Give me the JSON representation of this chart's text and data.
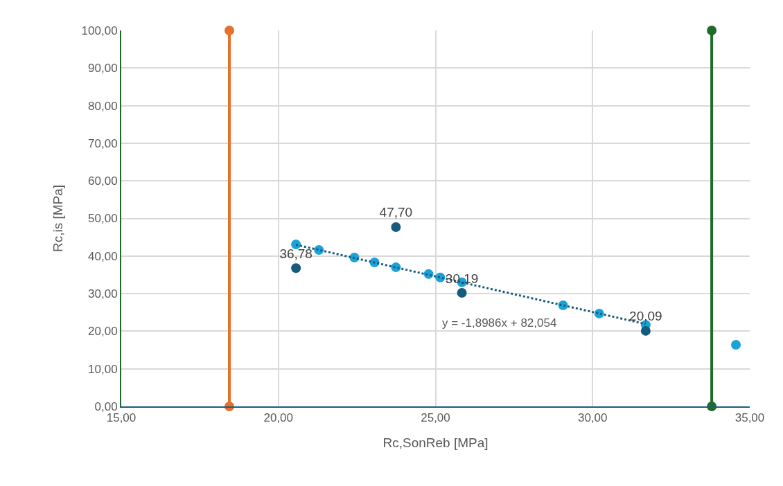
{
  "chart_data": {
    "type": "scatter",
    "xlabel": "Rc,SonReb [MPa]",
    "ylabel": "Rc,is [MPa]",
    "xlim": [
      15,
      35
    ],
    "ylim": [
      0,
      100
    ],
    "xticks": [
      {
        "value": 15,
        "label": "15,00"
      },
      {
        "value": 20,
        "label": "20,00"
      },
      {
        "value": 25,
        "label": "25,00"
      },
      {
        "value": 30,
        "label": "30,00"
      },
      {
        "value": 35,
        "label": "35,00"
      }
    ],
    "yticks": [
      {
        "value": 0,
        "label": "0,00"
      },
      {
        "value": 10,
        "label": "10,00"
      },
      {
        "value": 20,
        "label": "20,00"
      },
      {
        "value": 30,
        "label": "30,00"
      },
      {
        "value": 40,
        "label": "40,00"
      },
      {
        "value": 50,
        "label": "50,00"
      },
      {
        "value": 60,
        "label": "60,00"
      },
      {
        "value": 70,
        "label": "70,00"
      },
      {
        "value": 80,
        "label": "80,00"
      },
      {
        "value": 90,
        "label": "90,00"
      },
      {
        "value": 100,
        "label": "100,00"
      }
    ],
    "grid": true,
    "marker": "circle",
    "series": [
      {
        "type": "line",
        "color": "#e8702a",
        "x": [
          18.44,
          18.44
        ],
        "values": [
          0,
          100
        ],
        "marker": "circle",
        "line_style": "solid"
      },
      {
        "type": "line",
        "color": "#1e6b2a",
        "x": [
          33.79,
          33.79
        ],
        "values": [
          0,
          100
        ],
        "marker": "circle",
        "line_style": "solid"
      },
      {
        "color": "#1aa3d9",
        "x": [
          20.56,
          21.29,
          22.42,
          23.06,
          23.74,
          24.78,
          25.15,
          25.84,
          29.06,
          30.21,
          31.69,
          34.56
        ],
        "values": [
          43.1,
          41.6,
          39.6,
          38.3,
          37.0,
          35.2,
          34.3,
          33.0,
          26.9,
          24.7,
          21.7,
          16.4
        ]
      },
      {
        "type": "line",
        "color": "#175b7c",
        "x": [
          20.56,
          31.69
        ],
        "values": [
          43.0,
          21.9
        ],
        "marker": "none",
        "line_style": "dotted"
      },
      {
        "color": "#175b7c",
        "x": [
          20.56,
          23.74,
          25.84,
          31.69
        ],
        "values": [
          36.78,
          47.7,
          30.19,
          20.09
        ],
        "value_labels": [
          "36,78",
          "47,70",
          "30,19",
          "20,09"
        ]
      }
    ],
    "annotations": [
      "y = -1,8986x + 82,054"
    ]
  }
}
